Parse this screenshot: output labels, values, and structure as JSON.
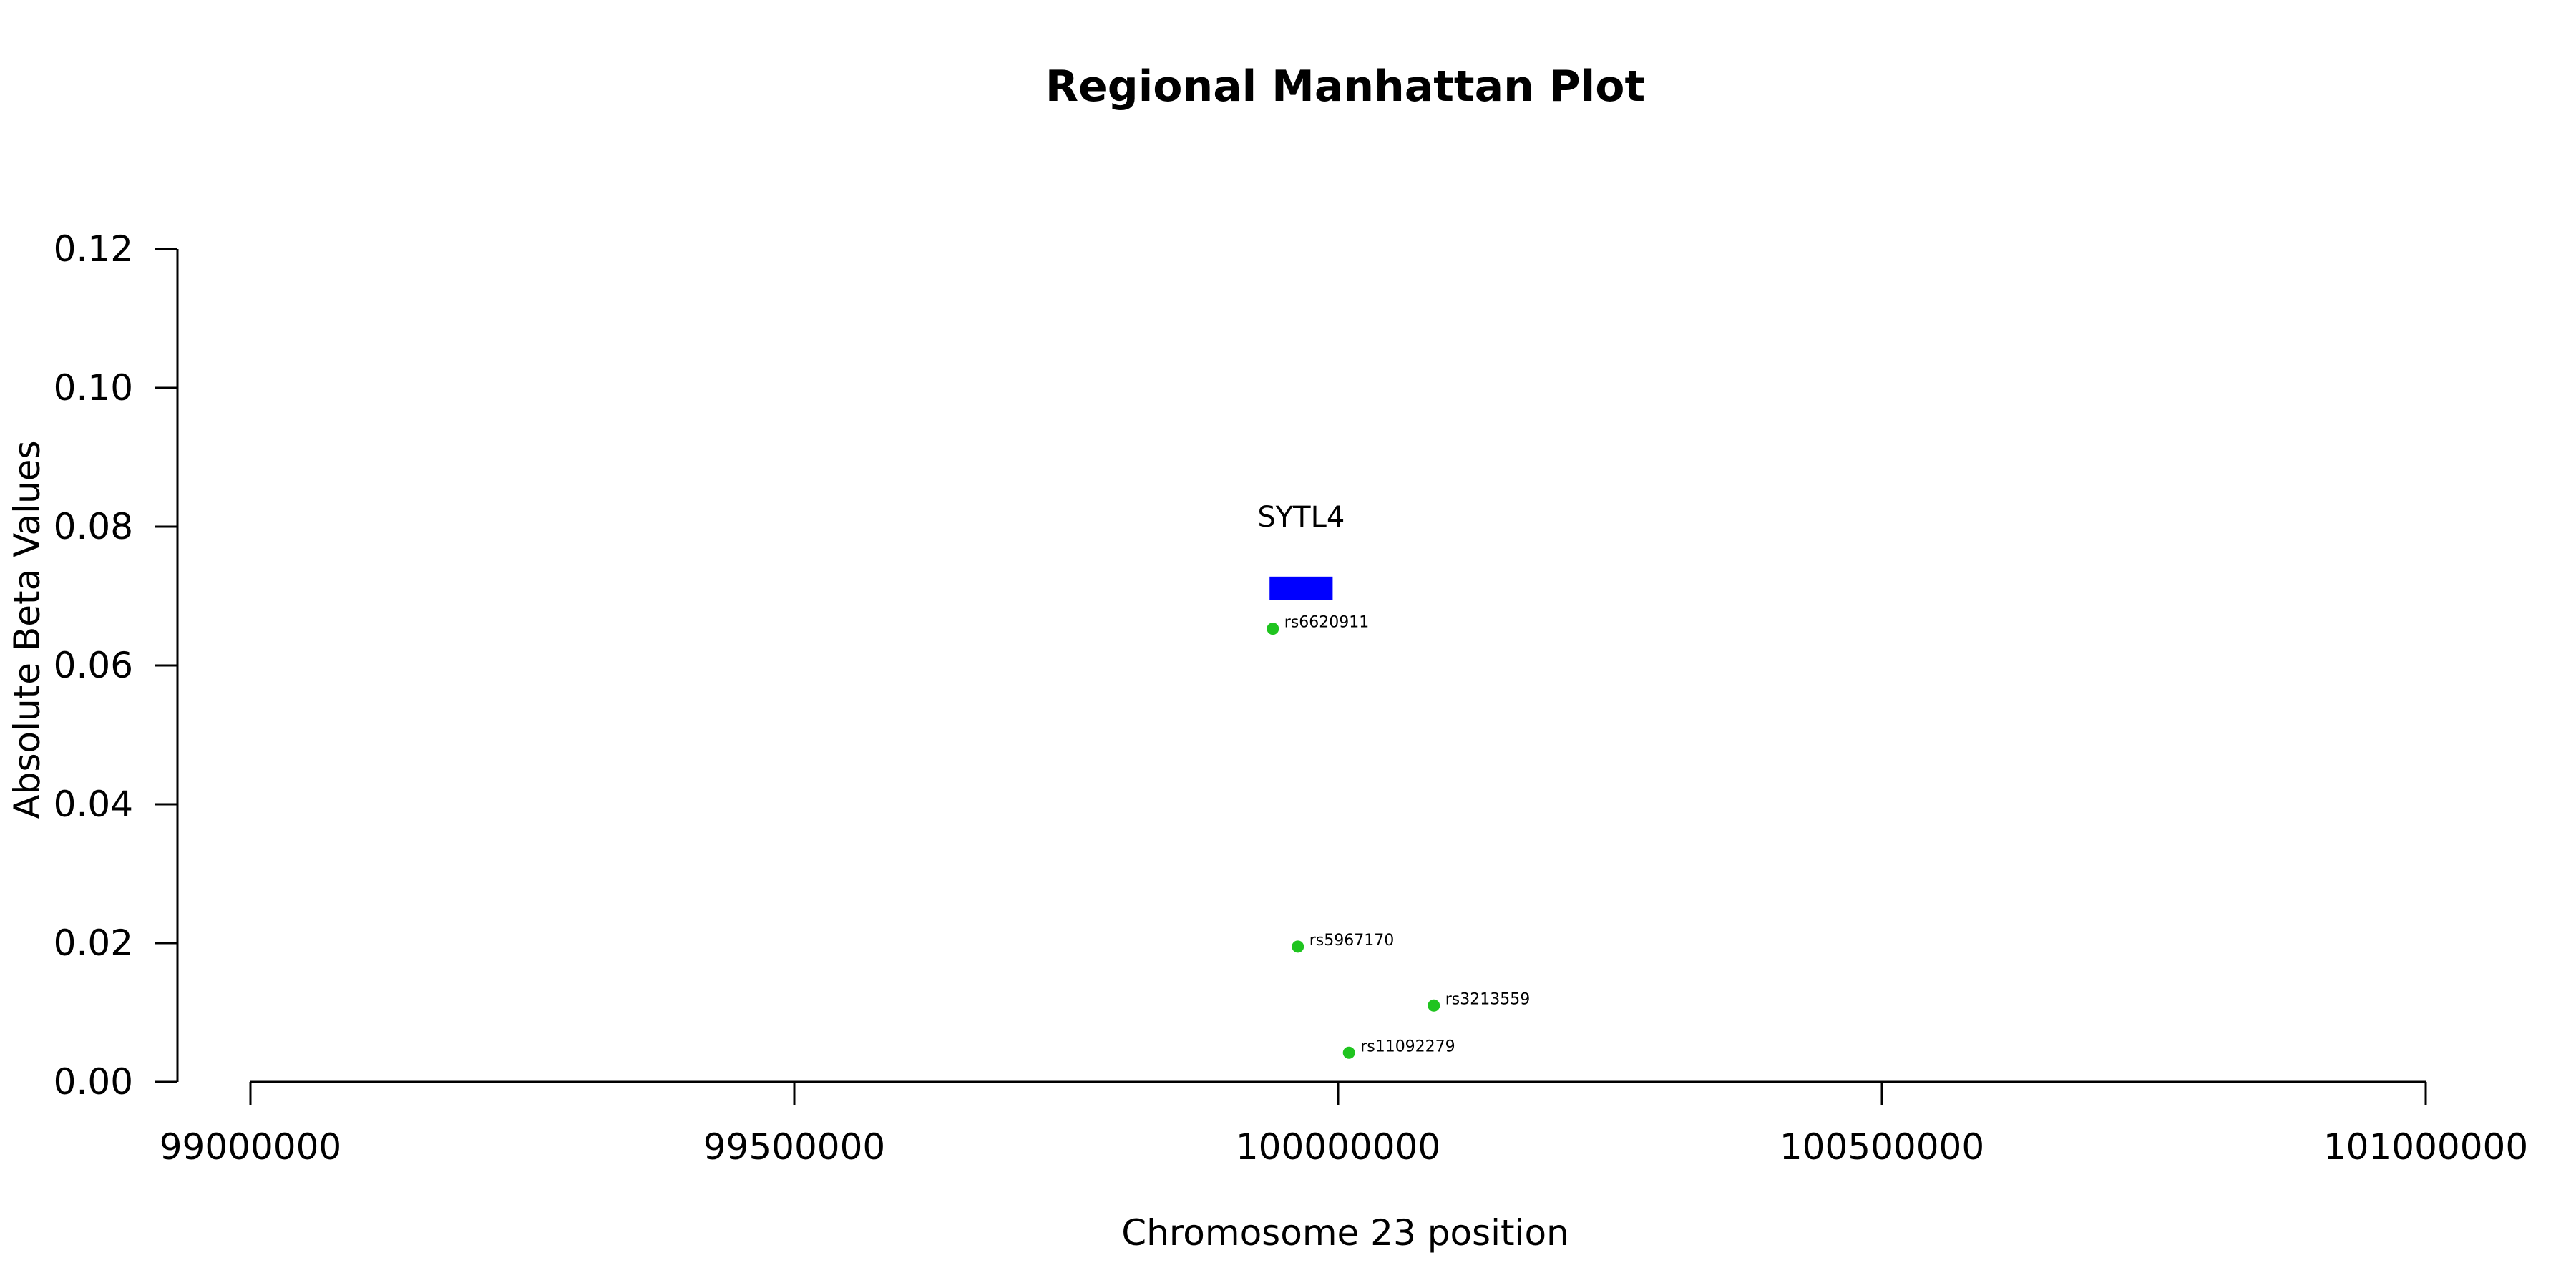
{
  "chart_data": {
    "type": "scatter",
    "title": "Regional Manhattan Plot",
    "xlabel": "Chromosome 23 position",
    "ylabel": "Absolute Beta Values",
    "xlim": [
      99000000,
      101000000
    ],
    "ylim": [
      0,
      0.12
    ],
    "x_ticks": [
      99000000,
      99500000,
      100000000,
      100500000,
      101000000
    ],
    "x_tick_labels": [
      "99000000",
      "99500000",
      "100000000",
      "100500000",
      "101000000"
    ],
    "y_ticks": [
      0,
      0.02,
      0.04,
      0.06,
      0.08,
      0.1,
      0.12
    ],
    "y_tick_labels": [
      "0.00",
      "0.02",
      "0.04",
      "0.06",
      "0.08",
      "0.10",
      "0.12"
    ],
    "grid": false,
    "point_color": "#1fc41f",
    "points": [
      {
        "label": "rs6620911",
        "x": 99940000,
        "y": 0.0653
      },
      {
        "label": "rs5967170",
        "x": 99963000,
        "y": 0.0195
      },
      {
        "label": "rs3213559",
        "x": 100088000,
        "y": 0.011
      },
      {
        "label": "rs11092279",
        "x": 100010000,
        "y": 0.0042
      }
    ],
    "genes": [
      {
        "name": "SYTL4",
        "start": 99937000,
        "end": 99995000,
        "y_low": 0.0694,
        "y_high": 0.0728,
        "color": "#0000ff"
      }
    ]
  }
}
